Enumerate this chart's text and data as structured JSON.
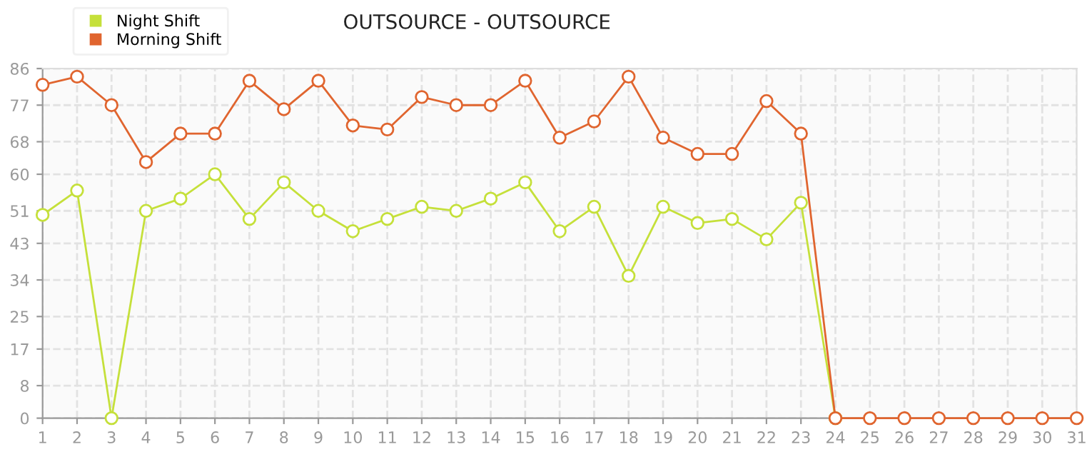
{
  "chart_data": {
    "type": "line",
    "title": "OUTSOURCE - OUTSOURCE",
    "categories": [
      "1",
      "2",
      "3",
      "4",
      "5",
      "6",
      "7",
      "8",
      "9",
      "10",
      "11",
      "12",
      "13",
      "14",
      "15",
      "16",
      "17",
      "18",
      "19",
      "20",
      "21",
      "22",
      "23",
      "24",
      "25",
      "26",
      "27",
      "28",
      "29",
      "30",
      "31"
    ],
    "series": [
      {
        "name": "Night Shift",
        "color": "#c5e03a",
        "values": [
          50,
          56,
          0,
          51,
          54,
          60,
          49,
          58,
          51,
          46,
          49,
          52,
          51,
          54,
          58,
          46,
          52,
          35,
          52,
          48,
          49,
          44,
          53,
          0,
          null,
          null,
          null,
          null,
          null,
          null,
          null
        ]
      },
      {
        "name": "Morning Shift",
        "color": "#e0652f",
        "values": [
          82,
          84,
          77,
          63,
          70,
          70,
          83,
          76,
          83,
          72,
          71,
          79,
          77,
          77,
          83,
          69,
          73,
          84,
          69,
          65,
          65,
          78,
          70,
          0,
          0,
          0,
          0,
          0,
          0,
          0,
          0
        ]
      }
    ],
    "ylim": [
      0,
      86
    ],
    "yticks": [
      0,
      8,
      17,
      25,
      34,
      43,
      51,
      60,
      68,
      77,
      86
    ],
    "grid": true,
    "legend": "top left",
    "marker": "circle",
    "line_style": "solid"
  }
}
